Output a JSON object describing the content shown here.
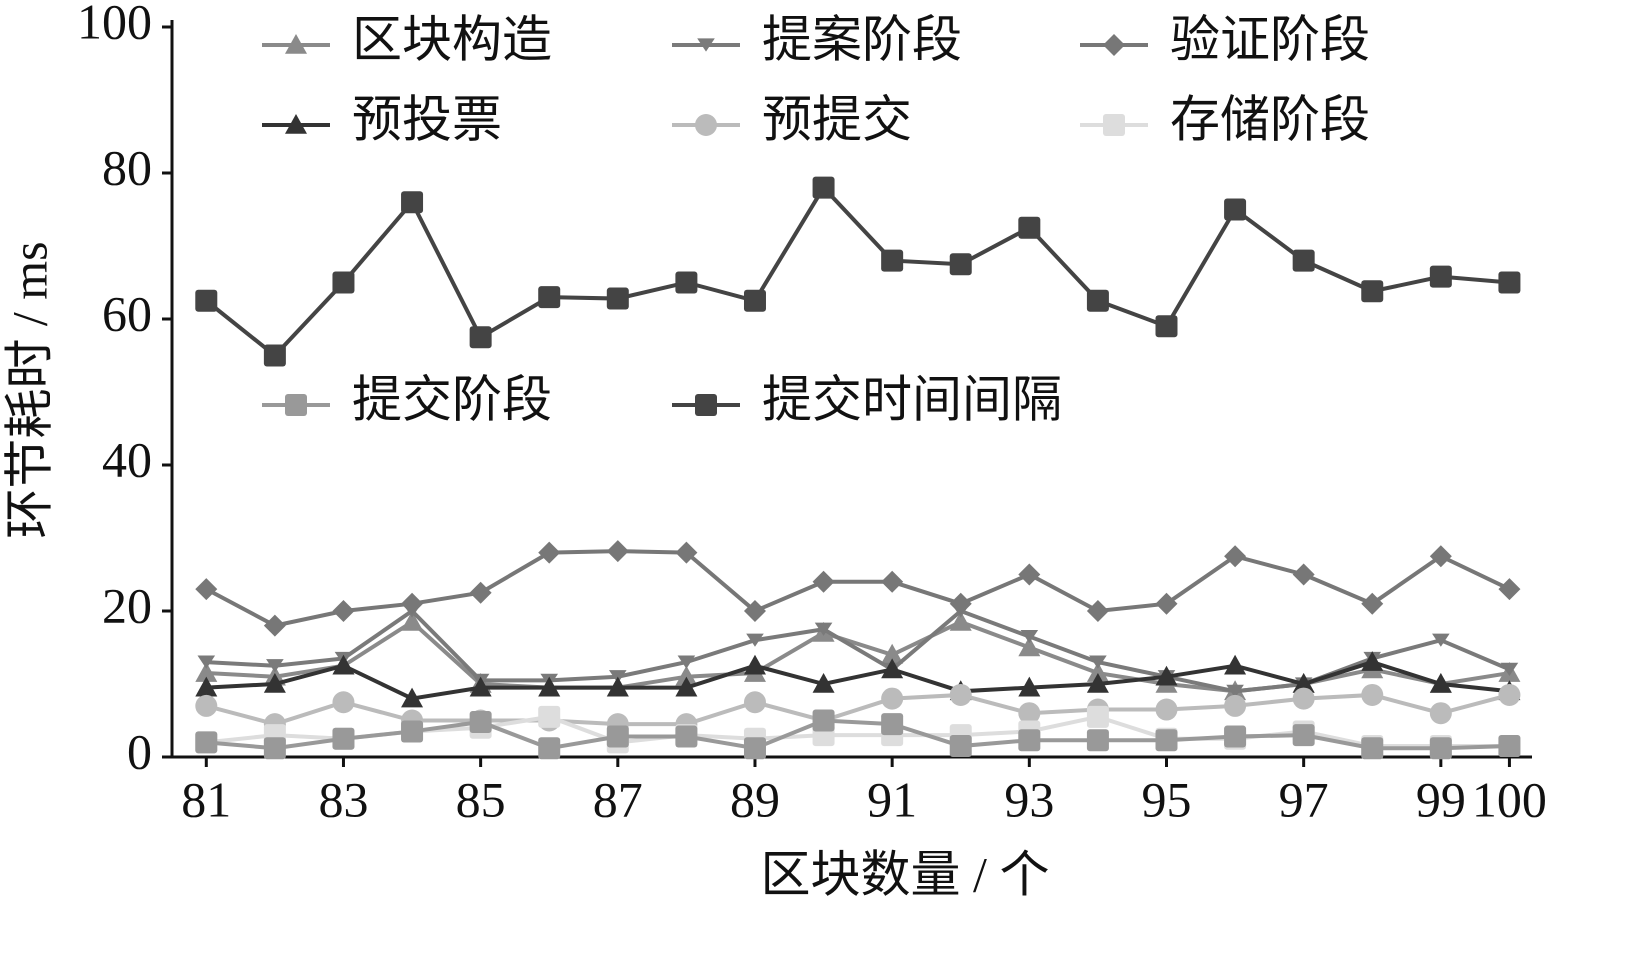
{
  "chart_data": {
    "type": "line",
    "x_label": "区块数量 / 个",
    "y_label": "环节耗时 / ms",
    "x": [
      81,
      82,
      83,
      84,
      85,
      86,
      87,
      88,
      89,
      90,
      91,
      92,
      93,
      94,
      95,
      96,
      97,
      98,
      99,
      100
    ],
    "xlim": [
      80.5,
      100.3
    ],
    "xticks": [
      81,
      83,
      85,
      87,
      89,
      91,
      93,
      95,
      97,
      99,
      100
    ],
    "ylim": [
      0,
      100
    ],
    "yticks": [
      0,
      20,
      40,
      60,
      80,
      100
    ],
    "series": [
      {
        "name": "区块构造",
        "color": "#8a8a8a",
        "marker": "triangle-up",
        "values": [
          11.5,
          11,
          12.5,
          18.5,
          10,
          9.5,
          9.5,
          11,
          11.5,
          17,
          14,
          18.5,
          15,
          11.5,
          10,
          9,
          10,
          12,
          10,
          11.5
        ]
      },
      {
        "name": "提案阶段",
        "color": "#7a7a7a",
        "marker": "triangle-down",
        "values": [
          13,
          12.5,
          13.5,
          20,
          10.5,
          10.5,
          11,
          13,
          16,
          17.5,
          12,
          20,
          16.5,
          13,
          11,
          9,
          10,
          13.5,
          16,
          12
        ]
      },
      {
        "name": "验证阶段",
        "color": "#777777",
        "marker": "diamond",
        "values": [
          23,
          18,
          20,
          21,
          22.5,
          28,
          28.2,
          28,
          20,
          24,
          24,
          21,
          25,
          20,
          21,
          27.5,
          25,
          21,
          27.5,
          23
        ]
      },
      {
        "name": "预投票",
        "color": "#333333",
        "marker": "triangle-up",
        "values": [
          9.5,
          10,
          12.5,
          8,
          9.5,
          9.5,
          9.5,
          9.5,
          12.5,
          10,
          12,
          9,
          9.5,
          10,
          11,
          12.5,
          10,
          13,
          10,
          9
        ]
      },
      {
        "name": "预提交",
        "color": "#bbbbbb",
        "marker": "circle",
        "values": [
          7,
          4.5,
          7.5,
          5,
          5,
          5,
          4.5,
          4.5,
          7.5,
          5,
          8,
          8.5,
          6,
          6.5,
          6.5,
          7,
          8,
          8.5,
          6,
          8.5
        ]
      },
      {
        "name": "存储阶段",
        "color": "#dddddd",
        "marker": "square",
        "values": [
          2,
          3,
          2.5,
          3.5,
          4,
          5.5,
          2,
          3,
          2.5,
          3,
          3,
          3,
          3.5,
          5.5,
          2.5,
          2.5,
          3.5,
          1.5,
          1.5,
          1.5
        ]
      },
      {
        "name": "提交阶段",
        "color": "#999999",
        "marker": "square",
        "values": [
          2,
          1.2,
          2.5,
          3.5,
          4.8,
          1.2,
          2.8,
          2.8,
          1.2,
          5,
          4.5,
          1.5,
          2.3,
          2.3,
          2.3,
          2.8,
          3,
          1.2,
          1.2,
          1.5
        ]
      },
      {
        "name": "提交时间间隔",
        "color": "#444444",
        "marker": "square",
        "values": [
          62.5,
          55,
          65,
          76,
          57.5,
          63,
          62.8,
          65,
          62.5,
          78,
          68,
          67.5,
          72.5,
          62.5,
          59,
          75,
          68,
          63.8,
          65.8,
          65
        ]
      }
    ]
  }
}
